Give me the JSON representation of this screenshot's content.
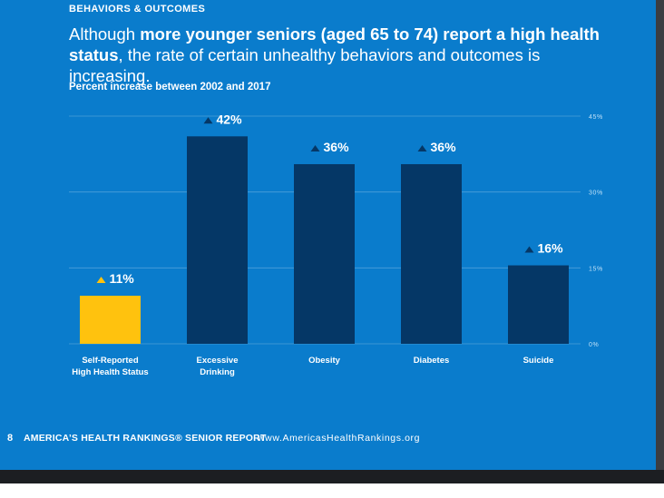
{
  "header": {
    "section_label": "BEHAVIORS & OUTCOMES",
    "headline_pre": "Although ",
    "headline_bold_1": "more younger seniors (aged 65 to 74) report a high health status",
    "headline_post": ", the rate of certain unhealthy behaviors and outcomes is increasing.",
    "subtitle": "Percent increase between 2002 and 2017"
  },
  "footer": {
    "page_number": "8",
    "report_title": "AMERICA’S HEALTH RANKINGS® SENIOR REPORT",
    "url": "www.AmericasHealthRankings.org"
  },
  "colors": {
    "background": "#0a7ccc",
    "bar_default": "#053766",
    "bar_highlight": "#ffc20e",
    "gridline": "#4d9fd9",
    "text": "#ffffff"
  },
  "chart_data": {
    "type": "bar",
    "categories": [
      [
        "Self-Reported",
        "High Health Status"
      ],
      [
        "Excessive",
        "Drinking"
      ],
      [
        "Obesity"
      ],
      [
        "Diabetes"
      ],
      [
        "Suicide"
      ]
    ],
    "values": [
      11,
      42,
      36,
      36,
      16
    ],
    "value_labels": [
      "11%",
      "42%",
      "36%",
      "36%",
      "16%"
    ],
    "bar_height_values": [
      9.5,
      41,
      35.5,
      35.5,
      15.5
    ],
    "highlight_index": 0,
    "indicator_icon": "up-triangle-icon",
    "yticks": [
      0,
      15,
      30,
      45
    ],
    "ytick_labels": [
      "0%",
      "15%",
      "30%",
      "45%"
    ],
    "ylim": [
      0,
      45
    ],
    "title": "Percent increase between 2002 and 2017",
    "xlabel": "",
    "ylabel": "",
    "grid": true,
    "yaxis_position": "right"
  }
}
